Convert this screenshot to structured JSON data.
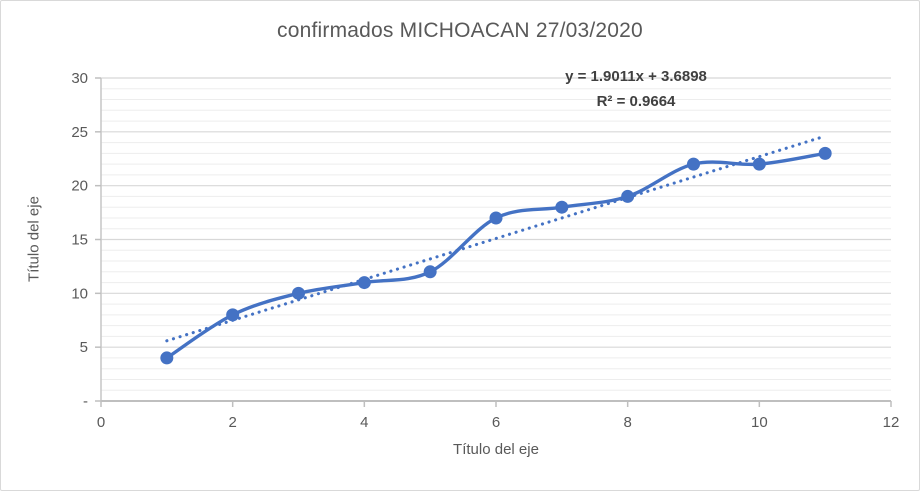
{
  "chart_data": {
    "type": "line",
    "title": "confirmados MICHOACAN 27/03/2020",
    "xlabel": "Título del eje",
    "ylabel": "Título del eje",
    "x": [
      1,
      2,
      3,
      4,
      5,
      6,
      7,
      8,
      9,
      10,
      11
    ],
    "series": [
      {
        "name": "confirmados",
        "values": [
          4,
          8,
          10,
          11,
          12,
          17,
          18,
          19,
          22,
          22,
          23
        ],
        "color": "#4472C4",
        "smooth": true,
        "marker": "circle",
        "marker_radius": 6.5,
        "line_width": 3.4
      }
    ],
    "trendline": {
      "type": "linear",
      "equation_label": "y = 1.9011x + 3.6898",
      "r2_label": "R² = 0.9664",
      "slope": 1.9011,
      "intercept": 3.6898,
      "x_start": 1,
      "x_end": 11,
      "color": "#4472C4",
      "style": "dotted",
      "line_width": 3.1
    },
    "xlim": [
      0,
      12
    ],
    "ylim": [
      0,
      30
    ],
    "x_ticks": [
      {
        "v": 0,
        "label": "0"
      },
      {
        "v": 2,
        "label": "2"
      },
      {
        "v": 4,
        "label": "4"
      },
      {
        "v": 6,
        "label": "6"
      },
      {
        "v": 8,
        "label": "8"
      },
      {
        "v": 10,
        "label": "10"
      },
      {
        "v": 12,
        "label": "12"
      }
    ],
    "y_ticks": [
      {
        "v": 30,
        "label": "30"
      },
      {
        "v": 25,
        "label": "25"
      },
      {
        "v": 20,
        "label": "20"
      },
      {
        "v": 15,
        "label": "15"
      },
      {
        "v": 10,
        "label": "10"
      },
      {
        "v": 5,
        "label": "5"
      },
      {
        "v": 0,
        "label": "-"
      }
    ],
    "y_major_unit": 5,
    "y_minor_unit": 1,
    "grid": {
      "horizontal_major": true,
      "horizontal_minor": true,
      "vertical": false
    },
    "legend": "none",
    "colors": {
      "series": "#4472C4",
      "title_text": "#595959",
      "axis_text": "#595959",
      "equation_text": "#404040",
      "gridline_major": "#D8D8D8",
      "gridline_minor": "#EDEDED",
      "x_axis_line": "#BFBFBF",
      "y_axis_line": "#C9C9C9",
      "frame_border": "#D9D9D9",
      "background": "#FFFFFF"
    }
  }
}
